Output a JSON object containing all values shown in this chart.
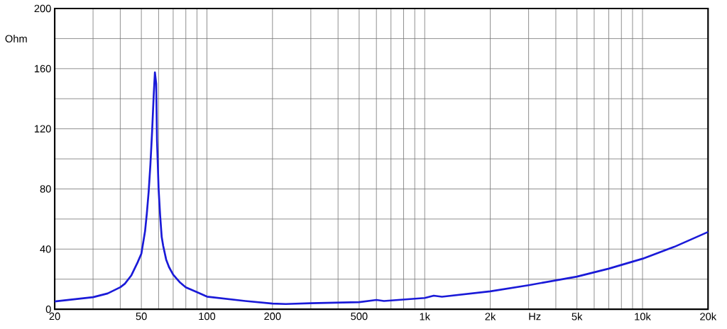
{
  "chart_data": {
    "type": "line",
    "xlabel": "Hz",
    "ylabel": "Ohm",
    "log": "x",
    "grid": true,
    "marker": "none",
    "line_style": "solid",
    "xlim": [
      20,
      20000
    ],
    "ylim": [
      0,
      200
    ],
    "xticks": [
      20,
      {
        "value": 30,
        "label": null
      },
      {
        "value": 40,
        "label": null
      },
      50,
      {
        "value": 60,
        "label": null
      },
      {
        "value": 70,
        "label": null
      },
      {
        "value": 80,
        "label": null
      },
      {
        "value": 90,
        "label": null
      },
      100,
      200,
      {
        "value": 300,
        "label": null
      },
      {
        "value": 400,
        "label": null
      },
      500,
      {
        "value": 600,
        "label": null
      },
      {
        "value": 700,
        "label": null
      },
      {
        "value": 800,
        "label": null
      },
      {
        "value": 900,
        "label": null
      },
      {
        "value": 1000,
        "label": "1k"
      },
      {
        "value": 2000,
        "label": "2k"
      },
      {
        "value": 3000,
        "label": null
      },
      {
        "value": 4000,
        "label": null
      },
      {
        "value": 5000,
        "label": "5k"
      },
      {
        "value": 6000,
        "label": null
      },
      {
        "value": 7000,
        "label": null
      },
      {
        "value": 8000,
        "label": null
      },
      {
        "value": 9000,
        "label": null
      },
      {
        "value": 10000,
        "label": "10k"
      },
      {
        "value": 20000,
        "label": "20k"
      }
    ],
    "yticks": [
      0,
      {
        "value": 20,
        "label": null
      },
      40,
      {
        "value": 60,
        "label": null
      },
      80,
      {
        "value": 100,
        "label": null
      },
      120,
      {
        "value": 140,
        "label": null
      },
      160,
      {
        "value": 180,
        "label": null
      },
      200
    ],
    "series": [
      {
        "color": "#1a1ad8",
        "x": [
          20,
          30,
          35,
          40,
          42,
          45,
          48,
          50,
          52,
          53,
          54,
          55,
          56,
          57,
          57.7,
          58.5,
          59,
          60,
          61,
          62,
          63,
          65,
          67,
          70,
          75,
          80,
          90,
          100,
          150,
          200,
          230,
          300,
          500,
          600,
          650,
          1000,
          1100,
          1200,
          2000,
          3000,
          5000,
          7000,
          10000,
          14000,
          20000
        ],
        "values": [
          5.2,
          8,
          10.5,
          14.6,
          17,
          22.6,
          31,
          37,
          52,
          64,
          78,
          96,
          118,
          143,
          157.5,
          150,
          112,
          80,
          62,
          48,
          42,
          33,
          28,
          23,
          18,
          14.6,
          11.4,
          8.4,
          5.5,
          3.8,
          3.5,
          4,
          4.7,
          6.2,
          5.5,
          7.5,
          9,
          8.3,
          11.9,
          16,
          21.7,
          27,
          33.6,
          41.5,
          51.4
        ]
      }
    ]
  }
}
